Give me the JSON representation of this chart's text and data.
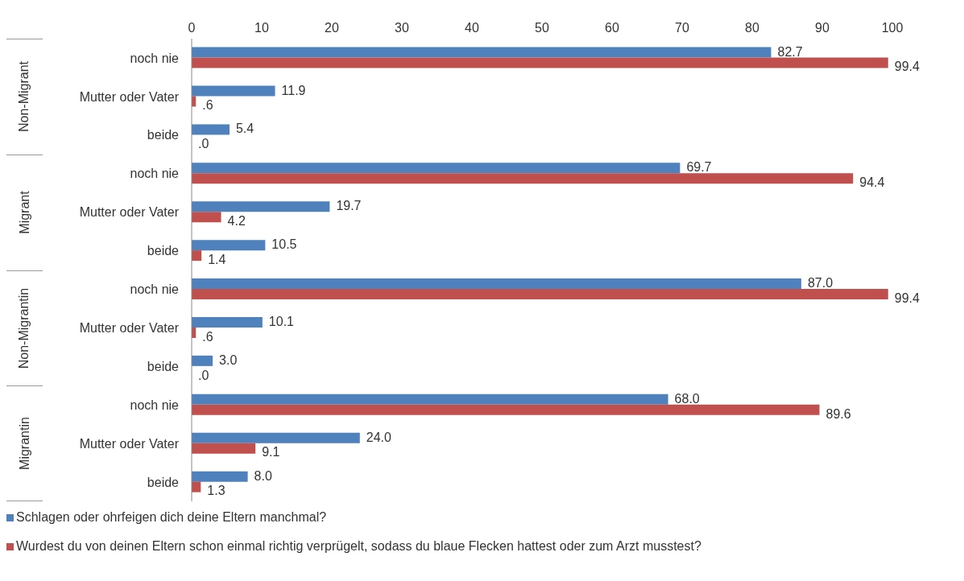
{
  "chart_data": {
    "type": "bar",
    "orientation": "horizontal",
    "categories": [
      "noch nie",
      "Mutter oder Vater",
      "beide",
      "noch nie",
      "Mutter oder Vater",
      "beide",
      "noch nie",
      "Mutter oder Vater",
      "beide",
      "noch nie",
      "Mutter oder Vater",
      "beide"
    ],
    "annotations": [
      "Non-Migrant",
      "Migrant",
      "Non-Migrantin",
      "Migrantin"
    ],
    "series": [
      {
        "name": "Schlagen oder ohrfeigen dich deine Eltern manchmal?",
        "color": "#4f81bd",
        "values": [
          82.7,
          11.9,
          5.4,
          69.7,
          19.7,
          10.5,
          87.0,
          10.1,
          3.0,
          68.0,
          24.0,
          8.0
        ],
        "value_labels": [
          "82.7",
          "11.9",
          "5.4",
          "69.7",
          "19.7",
          "10.5",
          "87.0",
          "10.1",
          "3.0",
          "68.0",
          "24.0",
          "8.0"
        ]
      },
      {
        "name": "Wurdest du von deinen Eltern schon einmal richtig verprügelt, sodass du blaue Flecken hattest oder zum Arzt musstest?",
        "color": "#c0504d",
        "values": [
          99.4,
          0.6,
          0.0,
          94.4,
          4.2,
          1.4,
          99.4,
          0.6,
          0.0,
          89.6,
          9.1,
          1.3
        ],
        "value_labels": [
          "99.4",
          ".6",
          ".0",
          "94.4",
          "4.2",
          "1.4",
          "99.4",
          ".6",
          ".0",
          "89.6",
          "9.1",
          "1.3"
        ]
      }
    ],
    "xlim": [
      0,
      100
    ],
    "xticks": [
      0,
      10,
      20,
      30,
      40,
      50,
      60,
      70,
      80,
      90,
      100
    ],
    "legend": "bottom"
  }
}
